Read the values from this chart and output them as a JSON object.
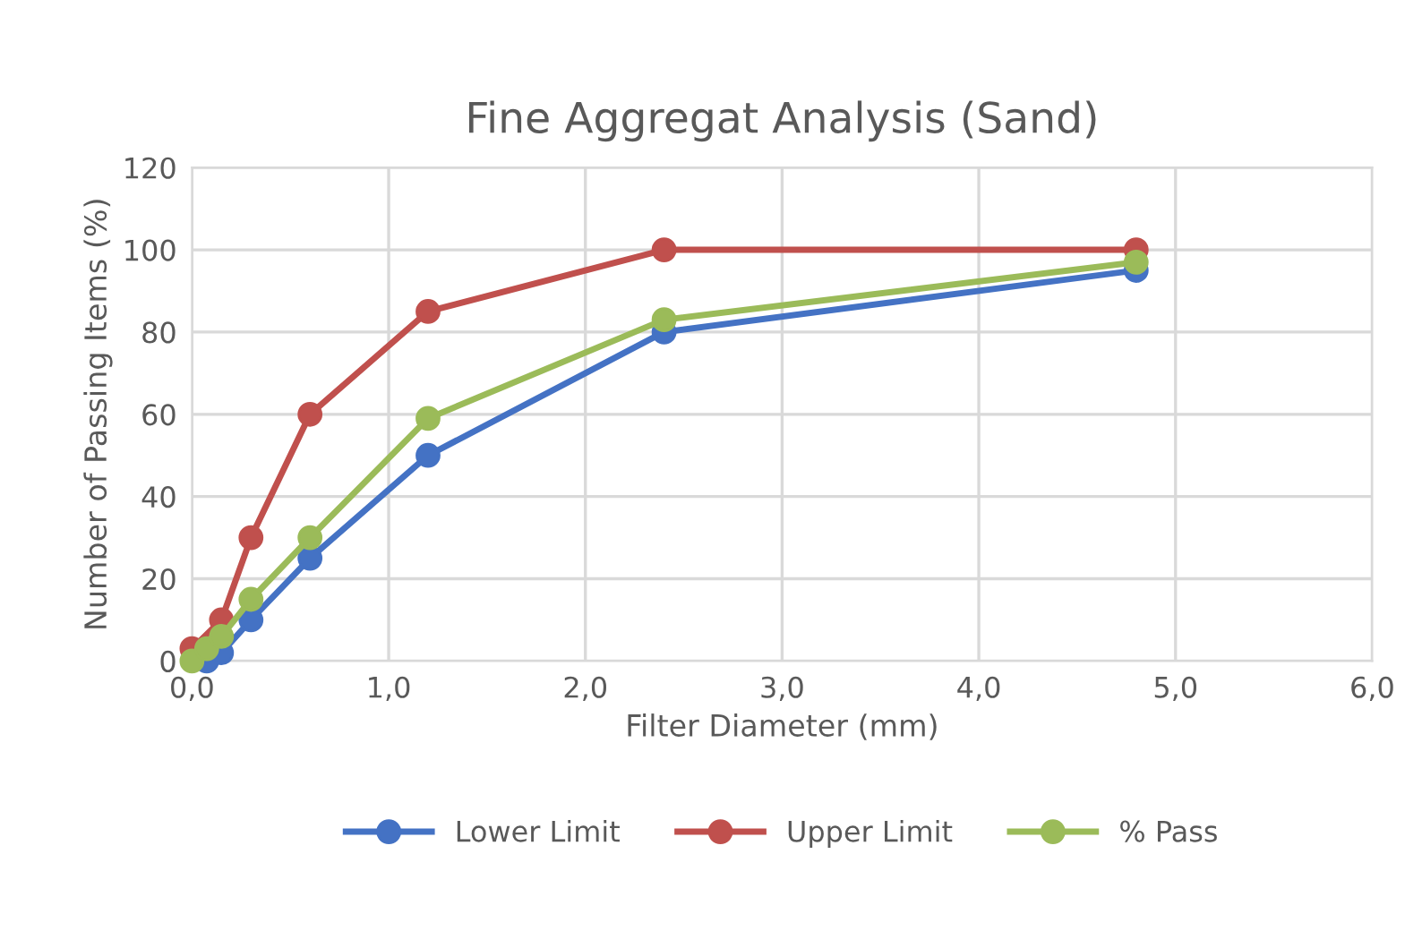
{
  "chart_data": {
    "type": "line",
    "title": "Fine Aggregat Analysis (Sand)",
    "xlabel": "Filter Diameter (mm)",
    "ylabel": "Number of Passing Items (%)",
    "xlim": [
      0,
      6
    ],
    "xticks": [
      {
        "value": 0,
        "label": "0,0"
      },
      {
        "value": 1,
        "label": "1,0"
      },
      {
        "value": 2,
        "label": "2,0"
      },
      {
        "value": 3,
        "label": "3,0"
      },
      {
        "value": 4,
        "label": "4,0"
      },
      {
        "value": 5,
        "label": "5,0"
      },
      {
        "value": 6,
        "label": "6,0"
      }
    ],
    "ylim": [
      0,
      120
    ],
    "yticks": [
      0,
      20,
      40,
      60,
      80,
      100,
      120
    ],
    "grid": true,
    "legend": "bottom",
    "marker": "circle",
    "line_style": "solid",
    "series": [
      {
        "name": "Lower Limit",
        "color": "#4472c4",
        "x": [
          0.075,
          0.15,
          0.3,
          0.6,
          1.2,
          2.4,
          4.8
        ],
        "values": [
          0,
          2,
          10,
          25,
          50,
          80,
          95
        ]
      },
      {
        "name": "Upper Limit",
        "color": "#c0504d",
        "x": [
          0,
          0.15,
          0.3,
          0.6,
          1.2,
          2.4,
          4.8
        ],
        "values": [
          3,
          10,
          30,
          60,
          85,
          100,
          100
        ]
      },
      {
        "name": "% Pass",
        "color": "#9bbb59",
        "x": [
          0,
          0.075,
          0.15,
          0.3,
          0.6,
          1.2,
          2.4,
          4.8
        ],
        "values": [
          0,
          3,
          6,
          15,
          30,
          59,
          83,
          97
        ]
      }
    ]
  }
}
